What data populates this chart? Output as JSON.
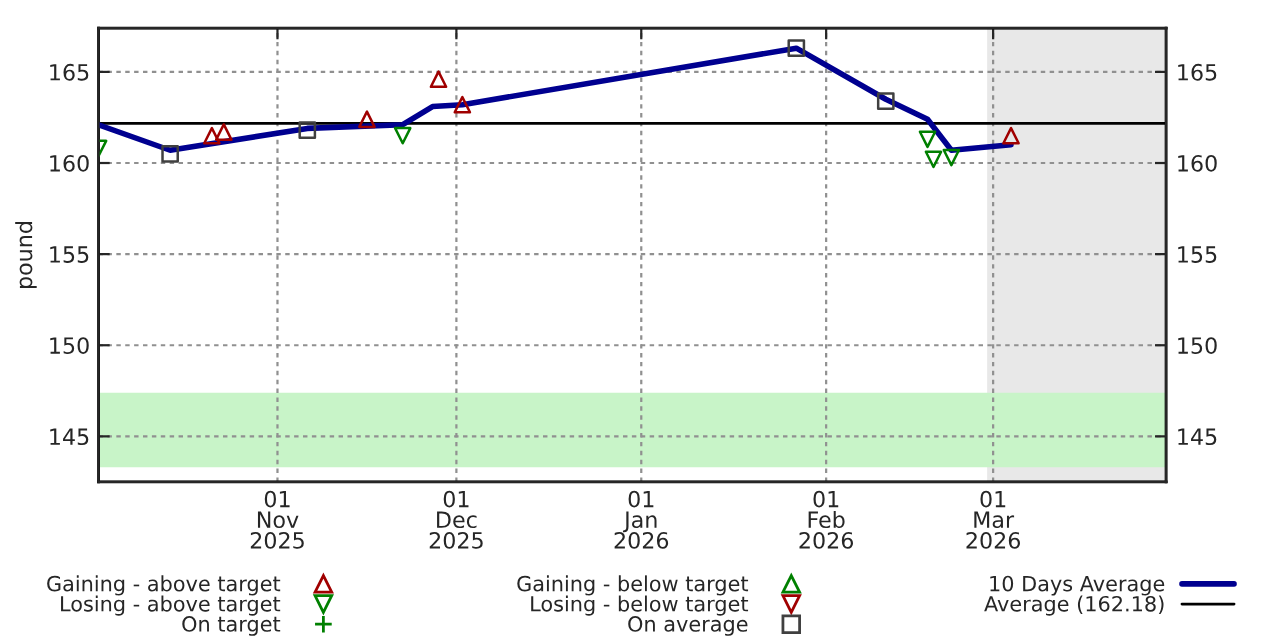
{
  "chart_data": {
    "type": "line",
    "ylabel": "pound",
    "xlim": [
      "2025-10-02",
      "2026-03-30"
    ],
    "xticks": [
      {
        "value": "2025-11-01",
        "label": "01\nNov\n2025"
      },
      {
        "value": "2025-12-01",
        "label": "01\nDec\n2025"
      },
      {
        "value": "2026-01-01",
        "label": "01\nJan\n2026"
      },
      {
        "value": "2026-02-01",
        "label": "01\nFeb\n2026"
      },
      {
        "value": "2026-03-01",
        "label": "01\nMar\n2026"
      }
    ],
    "ylim": [
      142.5,
      167.4
    ],
    "yticks": [
      145,
      150,
      155,
      160,
      165
    ],
    "y2lim": [
      142.5,
      167.4
    ],
    "y2ticks": [
      145,
      150,
      155,
      160,
      165
    ],
    "grid": true,
    "legend": "bottom",
    "series": [
      {
        "name": "Gaining - above target",
        "type": "scatter",
        "marker": "triangle",
        "color": "#a00000",
        "x": [
          "2025-10-21",
          "2025-10-23",
          "2025-11-16",
          "2025-11-28",
          "2025-12-02",
          "2026-03-04"
        ],
        "values": [
          161.5,
          161.7,
          162.4,
          164.6,
          163.2,
          161.5
        ]
      },
      {
        "name": "Losing - above target",
        "type": "scatter",
        "marker": "triangle_down",
        "color": "#008000",
        "x": [
          "2025-10-02",
          "2025-11-22",
          "2026-02-18",
          "2026-02-19",
          "2026-02-22"
        ],
        "values": [
          160.8,
          161.5,
          161.3,
          160.2,
          160.3
        ]
      },
      {
        "name": "On target",
        "type": "scatter",
        "marker": "cross",
        "color": "#008000"
      },
      {
        "name": "Gaining - below target",
        "type": "scatter",
        "marker": "triangle",
        "color": "#008000"
      },
      {
        "name": "Losing - below target",
        "type": "scatter",
        "marker": "triangle_down",
        "color": "#a00000"
      },
      {
        "name": "On average",
        "type": "scatter",
        "marker": "square",
        "color": "#404040",
        "x": [
          "2025-10-14",
          "2025-11-06",
          "2026-01-27",
          "2026-02-11"
        ],
        "values": [
          160.5,
          161.8,
          166.3,
          163.4
        ]
      },
      {
        "name": "10 Days Average",
        "marker": "none",
        "color": "#000090",
        "x": [
          "2025-10-02",
          "2025-10-14",
          "2025-11-06",
          "2025-11-22",
          "2025-11-27",
          "2025-12-02",
          "2026-01-27",
          "2026-02-11",
          "2026-02-18",
          "2026-02-22",
          "2026-03-04"
        ],
        "values": [
          162.1,
          160.7,
          161.9,
          162.1,
          163.1,
          163.2,
          166.3,
          163.5,
          162.4,
          160.7,
          161.0
        ]
      }
    ],
    "ref_lines": [
      {
        "axis": "y",
        "value": 162.18,
        "label": "Average (162.18)",
        "color": "#000000"
      }
    ],
    "bands": [
      {
        "axis": "x",
        "from": "2026-02-28",
        "to": "2026-03-30",
        "color": "#e8e8e8"
      },
      {
        "axis": "y",
        "from": 143.3,
        "to": 147.4,
        "color": "#c8f4c8"
      }
    ]
  }
}
